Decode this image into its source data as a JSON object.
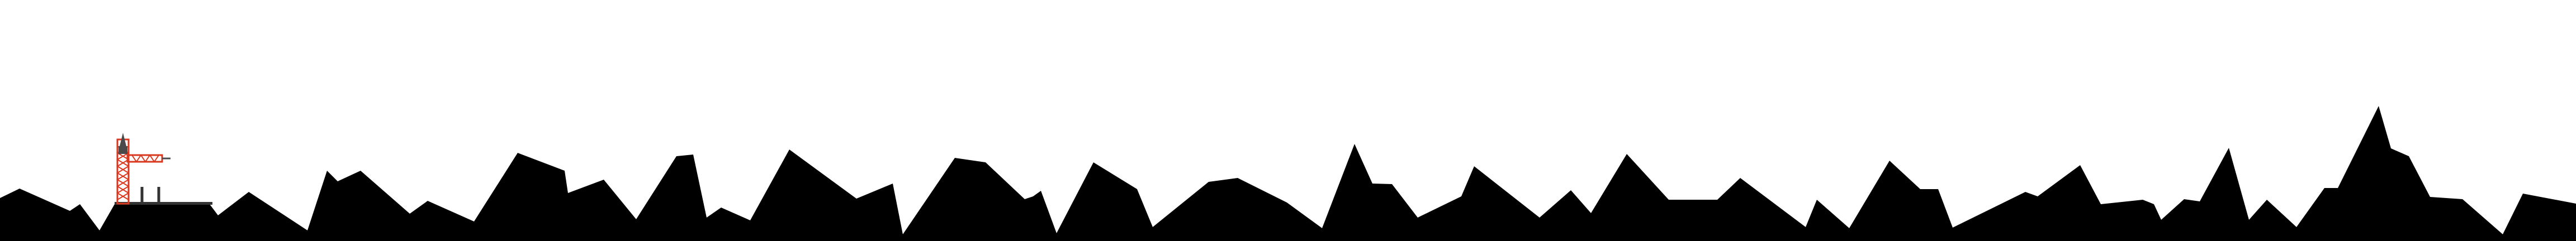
{
  "colors": {
    "sky": "#ffffff",
    "terrain": "#000000",
    "crane": "#d9381e",
    "crane_tower_dark": "#4a4a4a",
    "ground_base": "#000000"
  },
  "scene": {
    "elements": [
      "terrain-silhouette",
      "tower-crane",
      "flat-platform",
      "ground-strip"
    ]
  }
}
